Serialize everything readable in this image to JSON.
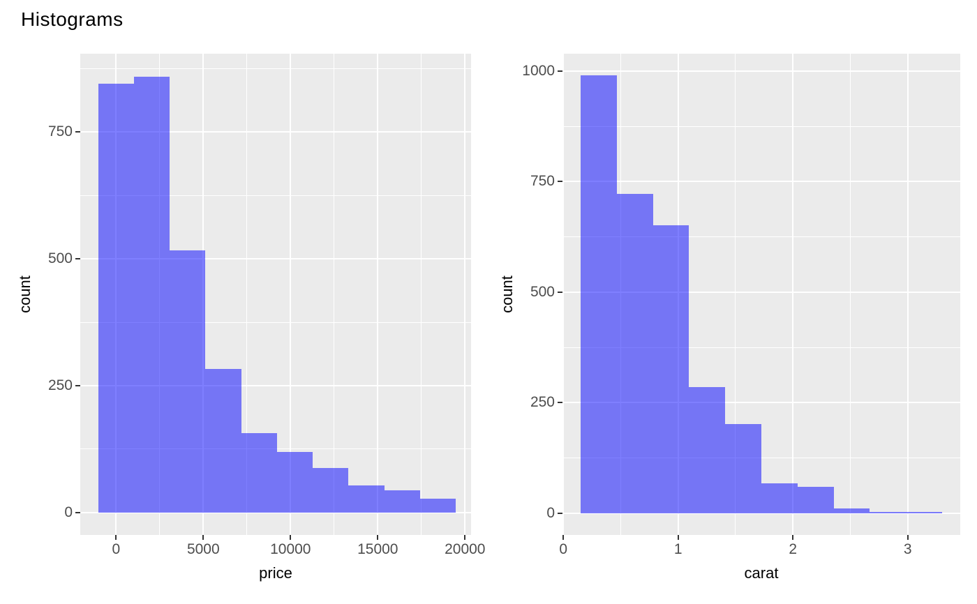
{
  "title": "Histograms",
  "colors": {
    "page_bg": "#FFFFFF",
    "panel_bg": "#EBEBEB",
    "gridline": "#FFFFFF",
    "bar_fill": "rgba(0,0,255,0.5)",
    "bar_fill_composited_over_panel": "#7575F5",
    "tick_mark": "#333333",
    "tick_label": "#4D4D4D",
    "text": "#000000"
  },
  "chart_data": [
    {
      "type": "bar",
      "subtype": "histogram",
      "name": "price-histogram",
      "xlabel": "price",
      "ylabel": "count",
      "bin_edges": [
        -1030,
        1020,
        3070,
        5120,
        7170,
        9220,
        11270,
        13320,
        15370,
        17420,
        19470
      ],
      "counts": [
        845,
        858,
        516,
        283,
        156,
        119,
        88,
        54,
        44,
        27
      ],
      "xlim": [
        -2052,
        20348
      ],
      "ylim": [
        -44,
        904
      ],
      "x_major_ticks": [
        0,
        5000,
        10000,
        15000,
        20000
      ],
      "x_tick_labels": [
        "0",
        "5000",
        "10000",
        "15000",
        "20000"
      ],
      "x_minor_ticks": [
        2500,
        7500,
        12500,
        17500
      ],
      "y_major_ticks": [
        0,
        250,
        500,
        750
      ],
      "y_tick_labels": [
        "0",
        "250",
        "500",
        "750"
      ],
      "y_minor_ticks": [
        125,
        375,
        625,
        875
      ],
      "grid": "major-and-minor",
      "legend": "none",
      "theme": "ggplot2-gray"
    },
    {
      "type": "bar",
      "subtype": "histogram",
      "name": "carat-histogram",
      "xlabel": "carat",
      "ylabel": "count",
      "bin_edges": [
        0.15,
        0.465,
        0.78,
        1.095,
        1.41,
        1.725,
        2.04,
        2.355,
        2.67,
        2.985,
        3.3
      ],
      "counts": [
        990,
        722,
        652,
        285,
        201,
        68,
        60,
        10,
        2,
        2
      ],
      "xlim": [
        -0.0075,
        3.4575
      ],
      "ylim": [
        -49.5,
        1039.5
      ],
      "x_major_ticks": [
        0,
        1,
        2,
        3
      ],
      "x_tick_labels": [
        "0",
        "1",
        "2",
        "3"
      ],
      "x_minor_ticks": [
        0.5,
        1.5,
        2.5
      ],
      "y_major_ticks": [
        0,
        250,
        500,
        750,
        1000
      ],
      "y_tick_labels": [
        "0",
        "250",
        "500",
        "750",
        "1000"
      ],
      "y_minor_ticks": [
        125,
        375,
        625,
        875
      ],
      "grid": "major-and-minor",
      "legend": "none",
      "theme": "ggplot2-gray"
    }
  ]
}
